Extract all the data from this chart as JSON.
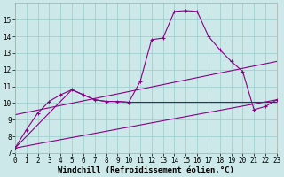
{
  "bg_color": "#cce8e8",
  "line_color": "#880088",
  "xlabel": "Windchill (Refroidissement éolien,°C)",
  "xlim": [
    0,
    23
  ],
  "ylim": [
    7,
    16
  ],
  "yticks": [
    7,
    8,
    9,
    10,
    11,
    12,
    13,
    14,
    15
  ],
  "xticks": [
    0,
    1,
    2,
    3,
    4,
    5,
    6,
    7,
    8,
    9,
    10,
    11,
    12,
    13,
    14,
    15,
    16,
    17,
    18,
    19,
    20,
    21,
    22,
    23
  ],
  "series1_x": [
    0,
    1,
    2,
    3,
    4,
    5,
    6,
    7,
    8,
    9,
    10,
    11,
    12,
    13,
    14,
    15,
    16,
    17,
    18,
    19,
    20,
    21,
    22,
    23
  ],
  "series1_y": [
    7.3,
    8.4,
    9.4,
    10.1,
    10.5,
    10.8,
    10.5,
    10.2,
    10.1,
    10.1,
    10.05,
    11.3,
    13.8,
    13.9,
    15.5,
    15.55,
    15.5,
    14.0,
    13.2,
    12.5,
    11.9,
    9.6,
    9.8,
    10.2
  ],
  "series2_x": [
    0,
    5,
    6,
    7,
    8,
    9,
    10,
    11,
    12,
    13,
    14,
    15,
    16,
    17,
    18,
    19,
    20,
    21,
    22,
    23
  ],
  "series2_y": [
    7.3,
    10.8,
    10.5,
    10.2,
    10.1,
    10.1,
    10.05,
    10.05,
    10.05,
    10.05,
    10.05,
    10.05,
    10.05,
    10.05,
    10.05,
    10.05,
    10.05,
    10.05,
    10.05,
    10.05
  ],
  "series3_x": [
    0,
    23
  ],
  "series3_y": [
    7.3,
    10.2
  ],
  "series4_x": [
    0,
    23
  ],
  "series4_y": [
    9.3,
    12.5
  ],
  "grid_color": "#99cccc",
  "tick_fontsize": 5.5,
  "xlabel_fontsize": 6.5
}
